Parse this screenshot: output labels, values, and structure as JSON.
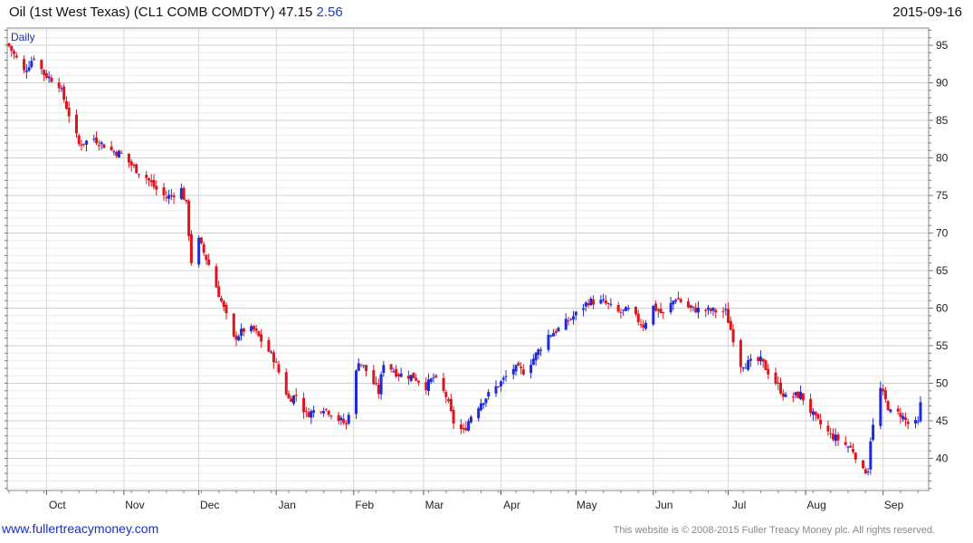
{
  "header": {
    "title": "Oil (1st West Texas) (CL1 COMB COMDTY) 47.15",
    "change": "2.56",
    "date": "2015-09-16"
  },
  "footer": {
    "left": "www.fullertreacymoney.com",
    "right": "This website is © 2008-2015 Fuller Treacy Money plc. All rights reserved."
  },
  "chart_data": {
    "type": "candlestick",
    "panel_label": "Daily",
    "ylim": [
      35,
      97
    ],
    "y_ticks": [
      40,
      45,
      50,
      55,
      60,
      65,
      70,
      75,
      80,
      85,
      90,
      95
    ],
    "x_tick_labels": [
      "Oct",
      "Nov",
      "Dec",
      "Jan",
      "Feb",
      "Mar",
      "Apr",
      "May",
      "Jun",
      "Jul",
      "Aug",
      "Sep"
    ],
    "x_range": [
      "2014-09-16",
      "2015-09-16"
    ],
    "grid": true,
    "up_color": "#1f2bd6",
    "down_color": "#e0141e",
    "anchors": [
      [
        "2014-09-16",
        94.9
      ],
      [
        "2014-09-22",
        91.5
      ],
      [
        "2014-09-26",
        93.5
      ],
      [
        "2014-09-30",
        91.2
      ],
      [
        "2014-10-06",
        89.8
      ],
      [
        "2014-10-10",
        85.8
      ],
      [
        "2014-10-14",
        81.8
      ],
      [
        "2014-10-20",
        82.6
      ],
      [
        "2014-10-27",
        81.0
      ],
      [
        "2014-10-31",
        80.5
      ],
      [
        "2014-11-05",
        78.7
      ],
      [
        "2014-11-10",
        77.4
      ],
      [
        "2014-11-14",
        75.8
      ],
      [
        "2014-11-18",
        74.7
      ],
      [
        "2014-11-24",
        75.8
      ],
      [
        "2014-11-26",
        73.7
      ],
      [
        "2014-11-28",
        66.2
      ],
      [
        "2014-12-01",
        69.0
      ],
      [
        "2014-12-05",
        65.8
      ],
      [
        "2014-12-10",
        60.9
      ],
      [
        "2014-12-15",
        55.9
      ],
      [
        "2014-12-19",
        57.1
      ],
      [
        "2014-12-23",
        57.1
      ],
      [
        "2014-12-31",
        53.3
      ],
      [
        "2015-01-06",
        47.9
      ],
      [
        "2015-01-09",
        48.4
      ],
      [
        "2015-01-13",
        45.9
      ],
      [
        "2015-01-20",
        46.8
      ],
      [
        "2015-01-26",
        45.2
      ],
      [
        "2015-01-29",
        44.5
      ],
      [
        "2015-02-03",
        53.1
      ],
      [
        "2015-02-06",
        51.7
      ],
      [
        "2015-02-11",
        48.8
      ],
      [
        "2015-02-13",
        52.8
      ],
      [
        "2015-02-19",
        51.2
      ],
      [
        "2015-02-25",
        50.9
      ],
      [
        "2015-03-02",
        49.6
      ],
      [
        "2015-03-05",
        50.8
      ],
      [
        "2015-03-10",
        48.3
      ],
      [
        "2015-03-13",
        44.8
      ],
      [
        "2015-03-17",
        43.5
      ],
      [
        "2015-03-20",
        45.7
      ],
      [
        "2015-03-24",
        47.5
      ],
      [
        "2015-04-01",
        50.1
      ],
      [
        "2015-04-06",
        52.0
      ],
      [
        "2015-04-10",
        51.6
      ],
      [
        "2015-04-14",
        53.3
      ],
      [
        "2015-04-20",
        56.4
      ],
      [
        "2015-04-24",
        57.2
      ],
      [
        "2015-05-01",
        59.2
      ],
      [
        "2015-05-06",
        60.9
      ],
      [
        "2015-05-12",
        60.8
      ],
      [
        "2015-05-18",
        59.4
      ],
      [
        "2015-05-22",
        59.7
      ],
      [
        "2015-05-28",
        57.7
      ],
      [
        "2015-06-01",
        60.2
      ],
      [
        "2015-06-05",
        59.1
      ],
      [
        "2015-06-10",
        61.4
      ],
      [
        "2015-06-16",
        59.9
      ],
      [
        "2015-06-22",
        59.7
      ],
      [
        "2015-06-26",
        59.6
      ],
      [
        "2015-06-30",
        59.5
      ],
      [
        "2015-07-06",
        52.5
      ],
      [
        "2015-07-10",
        52.7
      ],
      [
        "2015-07-14",
        53.0
      ],
      [
        "2015-07-20",
        50.1
      ],
      [
        "2015-07-24",
        48.1
      ],
      [
        "2015-07-30",
        48.5
      ],
      [
        "2015-08-05",
        45.2
      ],
      [
        "2015-08-11",
        43.1
      ],
      [
        "2015-08-14",
        42.5
      ],
      [
        "2015-08-20",
        41.1
      ],
      [
        "2015-08-24",
        38.2
      ],
      [
        "2015-08-26",
        38.6
      ],
      [
        "2015-08-27",
        42.6
      ],
      [
        "2015-08-31",
        49.2
      ],
      [
        "2015-09-04",
        46.1
      ],
      [
        "2015-09-08",
        45.9
      ],
      [
        "2015-09-11",
        44.6
      ],
      [
        "2015-09-15",
        44.6
      ],
      [
        "2015-09-16",
        47.15
      ]
    ]
  }
}
